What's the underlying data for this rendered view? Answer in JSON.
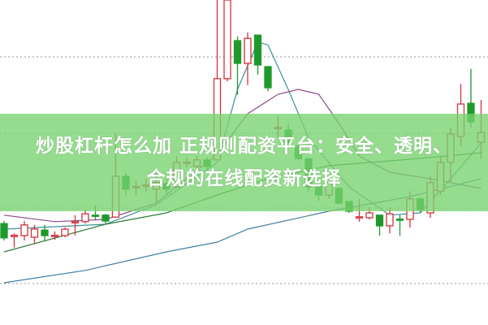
{
  "headline": {
    "line1": "炒股杠杆怎么加 正规则配资平台：安全、透明、",
    "line2": "合规的在线配资新选择"
  },
  "colors": {
    "up": "#d2323c",
    "down": "#1e9a2c",
    "grid": "#9a9a9a",
    "banner": "#8fdc8a",
    "ma_fast": "#3f8f9a",
    "ma_mid": "#2e7d3a",
    "ma_purple": "#8a4a8a",
    "ma_long": "#3f7fa0"
  },
  "chart_data": {
    "type": "candlestick",
    "ylim": [
      0,
      100
    ],
    "grid": "horizontal dotted",
    "gridlines": [
      82.5,
      59,
      36,
      12.75
    ],
    "candles": [
      [
        31.2,
        32,
        26,
        26.8
      ],
      [
        27.5,
        28.2,
        23.8,
        27.6
      ],
      [
        27.5,
        32,
        26,
        30.8
      ],
      [
        27,
        30.8,
        25,
        29.5
      ],
      [
        29.2,
        30.8,
        25.8,
        27.5
      ],
      [
        27.5,
        28.8,
        26.2,
        27.6
      ],
      [
        27.5,
        30,
        27,
        29.5
      ],
      [
        31.7,
        33.8,
        27.5,
        31.8
      ],
      [
        31.8,
        35.5,
        31.2,
        34.2
      ],
      [
        33.8,
        36.8,
        32.5,
        33.7
      ],
      [
        33.8,
        34.2,
        31.2,
        32
      ],
      [
        33.2,
        59.2,
        33.2,
        45.8
      ],
      [
        45.8,
        46.8,
        40,
        41.8
      ],
      [
        42.5,
        44.5,
        40,
        42.6
      ],
      [
        43,
        45,
        41,
        43.1
      ],
      [
        41.8,
        48,
        37.5,
        43.8
      ],
      [
        43.5,
        45,
        40,
        41.8
      ],
      [
        42.5,
        52,
        42,
        50
      ],
      [
        50,
        51.5,
        48.5,
        50.1
      ],
      [
        48.8,
        52,
        48,
        50.8
      ],
      [
        50.8,
        51.5,
        47.5,
        48.8
      ],
      [
        50.8,
        100,
        50.8,
        75.8
      ],
      [
        75.8,
        100,
        75,
        100
      ],
      [
        87.5,
        88.8,
        70.8,
        80.5
      ],
      [
        80.5,
        90,
        73.8,
        88.2
      ],
      [
        89.2,
        89.2,
        77,
        80
      ],
      [
        79.5,
        79.5,
        72,
        73
      ],
      [
        60.7,
        64.2,
        57.5,
        60.8
      ],
      [
        60,
        62,
        54.5,
        56.2
      ],
      [
        55,
        56.2,
        50.5,
        51.2
      ],
      [
        51.2,
        51.2,
        41.2,
        42.5
      ],
      [
        42.5,
        43.8,
        38.2,
        40
      ],
      [
        40,
        43.8,
        38.8,
        43.8
      ],
      [
        42,
        42.5,
        37.5,
        37.5
      ],
      [
        38,
        38,
        34.5,
        35
      ],
      [
        33.2,
        38.8,
        31.8,
        33.3
      ],
      [
        33,
        36.2,
        32.5,
        34.5
      ],
      [
        33.8,
        33.8,
        27.5,
        30.5
      ],
      [
        30.5,
        36.2,
        28.2,
        34.2
      ],
      [
        32.6,
        33.8,
        27.5,
        32.5
      ],
      [
        32.5,
        41.2,
        30,
        38.8
      ],
      [
        38.8,
        39.2,
        34.5,
        35.5
      ],
      [
        34.5,
        45.8,
        33,
        43.8
      ],
      [
        41.2,
        51.8,
        40,
        50
      ],
      [
        50,
        60.8,
        43.8,
        58.8
      ],
      [
        58,
        74.2,
        55,
        68
      ],
      [
        68.2,
        78.8,
        60.8,
        62.5
      ],
      [
        56.2,
        69.2,
        51.2,
        59.2
      ]
    ],
    "candle_fields": [
      "open",
      "high",
      "low",
      "close"
    ],
    "moving_averages": [
      {
        "color_key": "ma_fast",
        "points": [
          [
            0,
            29.5
          ],
          [
            10,
            31
          ],
          [
            15,
            37
          ],
          [
            21,
            50
          ],
          [
            23,
            72.5
          ],
          [
            25,
            87
          ],
          [
            26,
            86.2
          ],
          [
            28,
            72.5
          ],
          [
            30,
            57.5
          ],
          [
            34,
            42.5
          ],
          [
            38,
            33.8
          ],
          [
            41,
            34.5
          ],
          [
            44,
            45
          ],
          [
            47,
            56
          ]
        ]
      },
      {
        "color_key": "ma_mid",
        "points": [
          [
            0,
            22.5
          ],
          [
            10,
            31
          ],
          [
            16,
            34.5
          ],
          [
            21,
            40
          ],
          [
            26,
            45
          ],
          [
            32,
            49
          ],
          [
            40,
            51
          ],
          [
            47,
            53
          ]
        ]
      },
      {
        "color_key": "ma_purple",
        "points": [
          [
            0,
            33.8
          ],
          [
            5,
            31.8
          ],
          [
            10,
            32.5
          ],
          [
            15,
            37.5
          ],
          [
            21,
            52.5
          ],
          [
            24,
            65
          ],
          [
            27,
            71
          ],
          [
            29,
            72.5
          ],
          [
            31,
            71
          ],
          [
            33,
            62
          ],
          [
            35,
            52
          ],
          [
            38,
            47
          ],
          [
            42,
            45
          ],
          [
            47,
            42
          ]
        ]
      },
      {
        "color_key": "ma_long",
        "points": [
          [
            0,
            13
          ],
          [
            8,
            16.8
          ],
          [
            16,
            22.5
          ],
          [
            21,
            25.5
          ],
          [
            24,
            29.5
          ],
          [
            32,
            35
          ],
          [
            40,
            39.5
          ],
          [
            47,
            45
          ]
        ]
      }
    ]
  }
}
